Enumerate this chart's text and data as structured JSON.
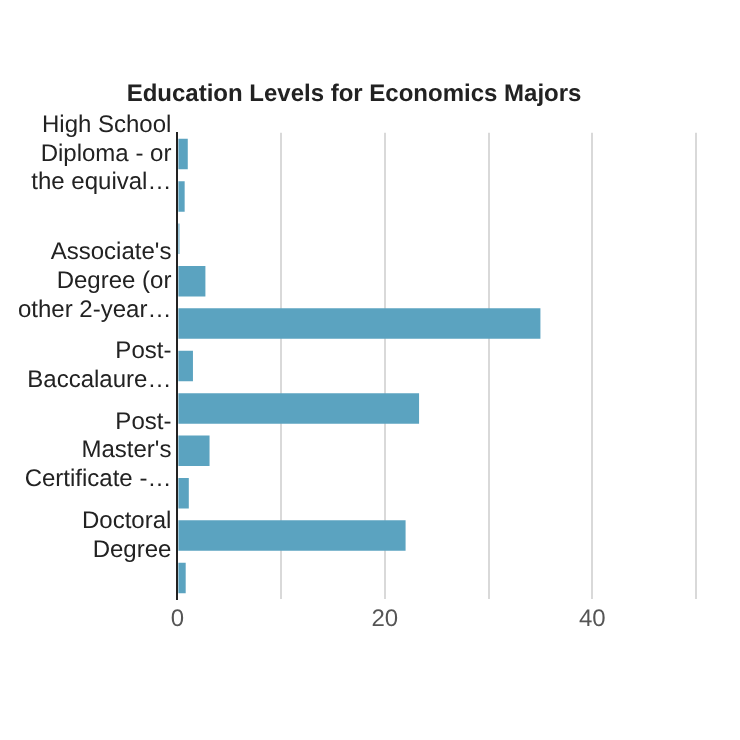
{
  "chart_data": {
    "type": "bar",
    "orientation": "horizontal",
    "title": "Education Levels for Economics Majors",
    "categories": [
      "High School Diploma - or the equival…",
      null,
      null,
      "Associate's Degree (or other 2-year…",
      null,
      "Post-Baccalaure…",
      null,
      "Post-Master's Certificate -…",
      null,
      "Doctoral Degree",
      null
    ],
    "values": [
      1,
      0.7,
      0.2,
      2.7,
      35,
      1.5,
      23.3,
      3.1,
      1.1,
      22,
      0.8
    ],
    "color": "#5ba3c0",
    "xlim": [
      0,
      50
    ],
    "xticks": [
      0,
      {
        "value": 10,
        "label": null
      },
      20,
      {
        "value": 30,
        "label": null
      },
      40,
      {
        "value": 50,
        "label": null
      }
    ],
    "grid": "x"
  }
}
